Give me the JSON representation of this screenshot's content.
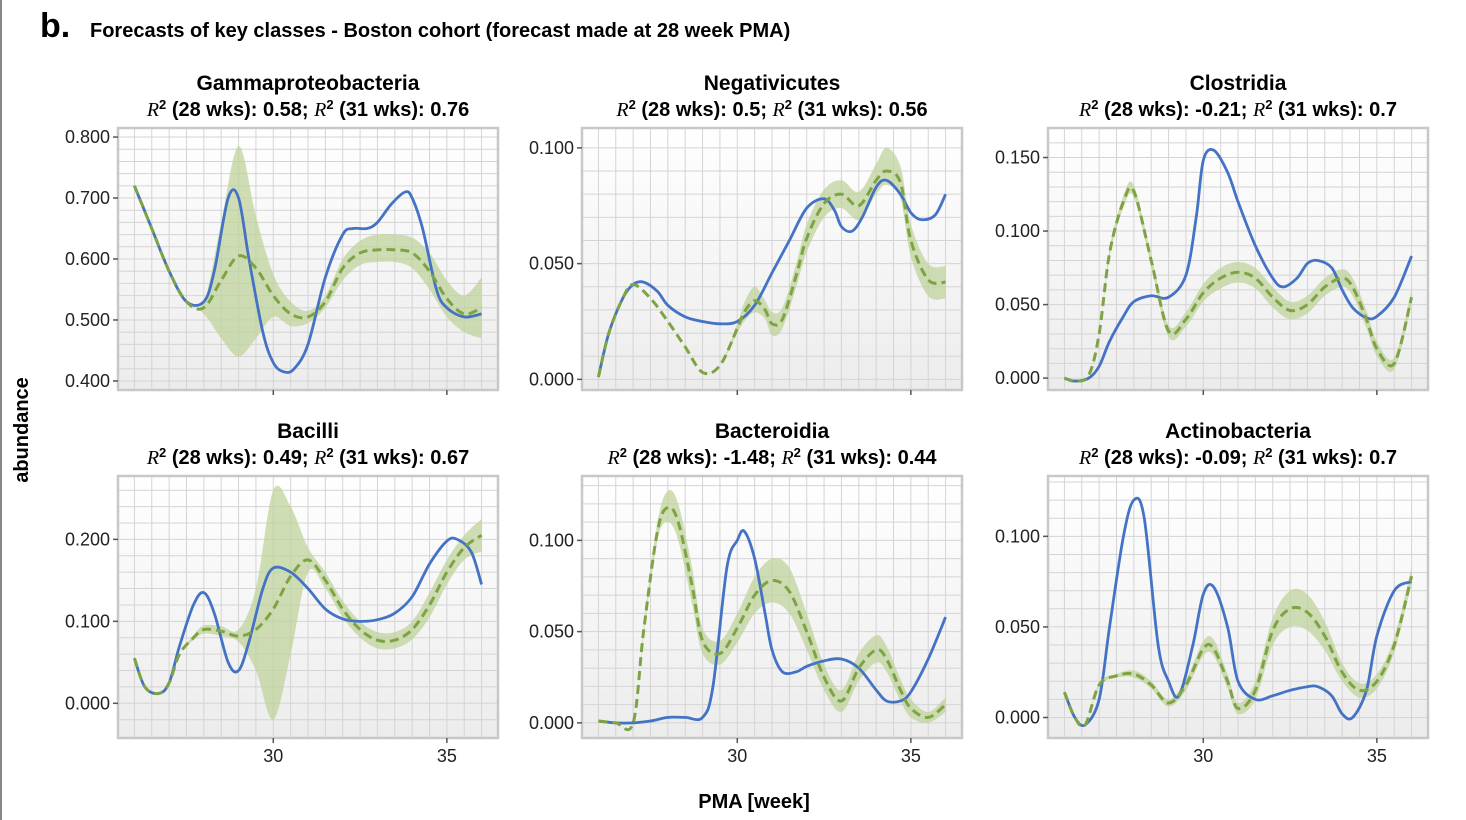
{
  "figure": {
    "panel_letter": "b.",
    "title": "Forecasts of key classes - Boston cohort (forecast made at 28 week PMA)",
    "xlabel": "PMA [week]",
    "ylabel": "abundance"
  },
  "colors": {
    "observed": "#4472c4",
    "forecast": "#7ea343",
    "band": "#bfd39b",
    "grid": "#d4d4d4",
    "frame": "#c8c8c8"
  },
  "chart_data": [
    {
      "type": "line",
      "title": "Gammaproteobacteria",
      "r2_28": "0.58",
      "r2_31": "0.76",
      "xlim": [
        25.7,
        36.3
      ],
      "ylim": [
        0.395,
        0.805
      ],
      "yticks": [
        "0.400",
        "0.500",
        "0.600",
        "0.700",
        "0.800"
      ],
      "ytick_values": [
        0.4,
        0.5,
        0.6,
        0.7,
        0.8
      ],
      "xticks": [
        "30",
        "35"
      ],
      "xtick_values": [
        30,
        35
      ],
      "observed": {
        "x": [
          26,
          26.5,
          27,
          27.5,
          28,
          28.3,
          28.7,
          29,
          29.3,
          29.7,
          30,
          30.3,
          30.6,
          31,
          31.5,
          32,
          32.3,
          32.7,
          33,
          33.4,
          33.8,
          34,
          34.3,
          34.7,
          35,
          35.5,
          36
        ],
        "y": [
          0.72,
          0.65,
          0.58,
          0.53,
          0.53,
          0.58,
          0.7,
          0.7,
          0.6,
          0.48,
          0.43,
          0.415,
          0.42,
          0.46,
          0.57,
          0.64,
          0.65,
          0.65,
          0.66,
          0.69,
          0.71,
          0.7,
          0.65,
          0.55,
          0.52,
          0.505,
          0.51
        ]
      },
      "forecast": {
        "x": [
          26,
          26.5,
          27,
          27.5,
          28,
          28.5,
          29,
          29.5,
          30,
          30.5,
          31,
          31.5,
          32,
          32.5,
          33,
          33.5,
          34,
          34.5,
          35,
          35.5,
          36
        ],
        "y": [
          0.72,
          0.65,
          0.58,
          0.53,
          0.52,
          0.565,
          0.605,
          0.585,
          0.54,
          0.51,
          0.505,
          0.53,
          0.585,
          0.61,
          0.615,
          0.615,
          0.61,
          0.58,
          0.535,
          0.51,
          0.52
        ],
        "lower": [
          0.72,
          0.65,
          0.58,
          0.53,
          0.51,
          0.47,
          0.44,
          0.47,
          0.505,
          0.49,
          0.495,
          0.52,
          0.565,
          0.59,
          0.595,
          0.595,
          0.585,
          0.55,
          0.505,
          0.48,
          0.47
        ],
        "upper": [
          0.72,
          0.65,
          0.58,
          0.53,
          0.53,
          0.66,
          0.785,
          0.67,
          0.575,
          0.53,
          0.515,
          0.54,
          0.6,
          0.63,
          0.64,
          0.64,
          0.635,
          0.61,
          0.565,
          0.54,
          0.57
        ]
      }
    },
    {
      "type": "line",
      "title": "Negativicutes",
      "r2_28": "0.5",
      "r2_31": "0.56",
      "xlim": [
        25.7,
        36.3
      ],
      "ylim": [
        -0.002,
        0.106
      ],
      "yticks": [
        "0.000",
        "0.050",
        "0.100"
      ],
      "ytick_values": [
        0,
        0.05,
        0.1
      ],
      "xticks": [
        "30",
        "35"
      ],
      "xtick_values": [
        30,
        35
      ],
      "observed": {
        "x": [
          26,
          26.3,
          26.7,
          27,
          27.3,
          27.7,
          28,
          28.5,
          29,
          29.5,
          30,
          30.5,
          31,
          31.5,
          32,
          32.5,
          32.8,
          33,
          33.3,
          33.6,
          34,
          34.3,
          34.7,
          35,
          35.3,
          35.7,
          36
        ],
        "y": [
          0.001,
          0.02,
          0.035,
          0.041,
          0.042,
          0.038,
          0.032,
          0.027,
          0.025,
          0.024,
          0.025,
          0.032,
          0.046,
          0.06,
          0.074,
          0.078,
          0.073,
          0.066,
          0.064,
          0.07,
          0.083,
          0.086,
          0.08,
          0.072,
          0.069,
          0.071,
          0.08
        ]
      },
      "forecast": {
        "x": [
          26,
          26.3,
          26.7,
          27,
          27.5,
          28,
          28.5,
          29,
          29.5,
          30,
          30.2,
          30.5,
          30.8,
          31,
          31.3,
          31.7,
          32,
          32.5,
          33,
          33.5,
          34,
          34.3,
          34.7,
          35,
          35.5,
          36
        ],
        "y": [
          0.001,
          0.02,
          0.035,
          0.041,
          0.035,
          0.025,
          0.014,
          0.003,
          0.006,
          0.022,
          0.029,
          0.034,
          0.03,
          0.024,
          0.026,
          0.045,
          0.061,
          0.076,
          0.08,
          0.075,
          0.086,
          0.09,
          0.085,
          0.06,
          0.043,
          0.042
        ],
        "lower": [
          0.001,
          0.02,
          0.035,
          0.041,
          0.035,
          0.025,
          0.014,
          0.003,
          0.006,
          0.02,
          0.025,
          0.029,
          0.026,
          0.019,
          0.022,
          0.04,
          0.055,
          0.07,
          0.074,
          0.069,
          0.08,
          0.084,
          0.078,
          0.053,
          0.036,
          0.035
        ],
        "upper": [
          0.001,
          0.02,
          0.035,
          0.041,
          0.035,
          0.025,
          0.014,
          0.003,
          0.006,
          0.024,
          0.033,
          0.04,
          0.034,
          0.029,
          0.031,
          0.05,
          0.067,
          0.082,
          0.086,
          0.081,
          0.093,
          0.1,
          0.092,
          0.067,
          0.05,
          0.049
        ]
      }
    },
    {
      "type": "line",
      "title": "Clostridia",
      "r2_28": "-0.21",
      "r2_31": "0.7",
      "xlim": [
        25.7,
        36.3
      ],
      "ylim": [
        -0.004,
        0.166
      ],
      "yticks": [
        "0.000",
        "0.050",
        "0.100",
        "0.150"
      ],
      "ytick_values": [
        0,
        0.05,
        0.1,
        0.15
      ],
      "xticks": [
        "30",
        "35"
      ],
      "xtick_values": [
        30,
        35
      ],
      "observed": {
        "x": [
          26,
          26.3,
          26.7,
          27,
          27.3,
          27.7,
          28,
          28.5,
          29,
          29.5,
          29.8,
          30,
          30.3,
          30.7,
          31,
          31.5,
          32,
          32.3,
          32.7,
          33,
          33.3,
          33.7,
          34,
          34.3,
          34.7,
          35,
          35.5,
          36
        ],
        "y": [
          0,
          -0.002,
          0.0,
          0.008,
          0.025,
          0.042,
          0.052,
          0.056,
          0.055,
          0.07,
          0.11,
          0.148,
          0.155,
          0.14,
          0.12,
          0.09,
          0.068,
          0.062,
          0.068,
          0.078,
          0.08,
          0.075,
          0.06,
          0.048,
          0.041,
          0.042,
          0.055,
          0.083
        ]
      },
      "forecast": {
        "x": [
          26,
          26.3,
          26.7,
          27,
          27.3,
          27.7,
          28,
          28.5,
          29,
          29.5,
          30,
          30.5,
          31,
          31.5,
          32,
          32.5,
          33,
          33.5,
          34,
          34.3,
          34.7,
          35,
          35.5,
          36
        ],
        "y": [
          0,
          -0.002,
          0.002,
          0.03,
          0.085,
          0.12,
          0.127,
          0.08,
          0.032,
          0.04,
          0.058,
          0.068,
          0.072,
          0.068,
          0.055,
          0.046,
          0.05,
          0.062,
          0.068,
          0.062,
          0.04,
          0.02,
          0.01,
          0.055
        ],
        "lower": [
          0,
          -0.002,
          0.002,
          0.03,
          0.082,
          0.116,
          0.123,
          0.076,
          0.028,
          0.035,
          0.052,
          0.061,
          0.065,
          0.061,
          0.048,
          0.04,
          0.044,
          0.056,
          0.062,
          0.056,
          0.034,
          0.015,
          0.006,
          0.05
        ],
        "upper": [
          0,
          -0.002,
          0.002,
          0.03,
          0.088,
          0.124,
          0.131,
          0.084,
          0.036,
          0.045,
          0.064,
          0.075,
          0.079,
          0.075,
          0.062,
          0.052,
          0.056,
          0.068,
          0.074,
          0.068,
          0.046,
          0.025,
          0.014,
          0.06
        ]
      }
    },
    {
      "type": "line",
      "title": "Bacilli",
      "r2_28": "0.49",
      "r2_31": "0.67",
      "xlim": [
        25.7,
        36.3
      ],
      "ylim": [
        -0.035,
        0.27
      ],
      "yticks": [
        "0.000",
        "0.100",
        "0.200"
      ],
      "ytick_values": [
        0,
        0.1,
        0.2
      ],
      "xticks": [
        "30",
        "35"
      ],
      "xtick_values": [
        30,
        35
      ],
      "observed": {
        "x": [
          26,
          26.3,
          26.7,
          27,
          27.3,
          27.7,
          28,
          28.3,
          28.7,
          29,
          29.3,
          29.7,
          30,
          30.5,
          31,
          31.5,
          32,
          32.5,
          33,
          33.5,
          34,
          34.5,
          35,
          35.3,
          35.7,
          36
        ],
        "y": [
          0.055,
          0.02,
          0.012,
          0.025,
          0.07,
          0.12,
          0.135,
          0.11,
          0.05,
          0.04,
          0.075,
          0.14,
          0.165,
          0.16,
          0.14,
          0.115,
          0.103,
          0.1,
          0.102,
          0.11,
          0.13,
          0.17,
          0.198,
          0.2,
          0.185,
          0.145
        ]
      },
      "forecast": {
        "x": [
          26,
          26.3,
          26.7,
          27,
          27.3,
          27.7,
          28,
          28.5,
          29,
          29.5,
          30,
          30.5,
          31,
          31.5,
          32,
          32.5,
          33,
          33.5,
          34,
          34.5,
          35,
          35.5,
          36
        ],
        "y": [
          0.055,
          0.02,
          0.012,
          0.025,
          0.06,
          0.08,
          0.09,
          0.088,
          0.082,
          0.09,
          0.115,
          0.155,
          0.175,
          0.15,
          0.115,
          0.09,
          0.077,
          0.077,
          0.09,
          0.12,
          0.16,
          0.19,
          0.205
        ],
        "lower": [
          0.055,
          0.02,
          0.012,
          0.025,
          0.06,
          0.077,
          0.085,
          0.082,
          0.075,
          0.04,
          -0.02,
          0.06,
          0.16,
          0.14,
          0.105,
          0.08,
          0.067,
          0.067,
          0.078,
          0.105,
          0.145,
          0.175,
          0.185
        ],
        "upper": [
          0.055,
          0.02,
          0.012,
          0.025,
          0.06,
          0.083,
          0.095,
          0.094,
          0.09,
          0.14,
          0.26,
          0.24,
          0.19,
          0.16,
          0.125,
          0.1,
          0.087,
          0.087,
          0.1,
          0.135,
          0.175,
          0.205,
          0.225
        ]
      }
    },
    {
      "type": "line",
      "title": "Bacteroidia",
      "r2_28": "-1.48",
      "r2_31": "0.44",
      "xlim": [
        25.7,
        36.3
      ],
      "ylim": [
        -0.005,
        0.132
      ],
      "yticks": [
        "0.000",
        "0.050",
        "0.100"
      ],
      "ytick_values": [
        0,
        0.05,
        0.1
      ],
      "xticks": [
        "30",
        "35"
      ],
      "xtick_values": [
        30,
        35
      ],
      "observed": {
        "x": [
          26,
          26.5,
          27,
          27.5,
          28,
          28.5,
          29,
          29.3,
          29.7,
          30,
          30.2,
          30.5,
          30.8,
          31,
          31.3,
          31.7,
          32,
          32.5,
          33,
          33.5,
          34,
          34.3,
          34.7,
          35,
          35.5,
          36
        ],
        "y": [
          0.001,
          0.0,
          0.0,
          0.001,
          0.003,
          0.003,
          0.003,
          0.02,
          0.085,
          0.1,
          0.105,
          0.09,
          0.06,
          0.04,
          0.028,
          0.028,
          0.031,
          0.034,
          0.035,
          0.03,
          0.018,
          0.012,
          0.012,
          0.017,
          0.035,
          0.058
        ]
      },
      "forecast": {
        "x": [
          26,
          26.5,
          27,
          27.3,
          27.7,
          28,
          28.3,
          28.7,
          29,
          29.5,
          30,
          30.5,
          31,
          31.5,
          32,
          32.5,
          33,
          33.5,
          34,
          34.3,
          34.7,
          35,
          35.5,
          36
        ],
        "y": [
          0.001,
          0.0,
          0.0,
          0.05,
          0.105,
          0.118,
          0.11,
          0.075,
          0.045,
          0.038,
          0.052,
          0.07,
          0.078,
          0.072,
          0.05,
          0.025,
          0.012,
          0.03,
          0.04,
          0.035,
          0.018,
          0.008,
          0.003,
          0.01
        ],
        "lower": [
          0.001,
          0.0,
          0.0,
          0.048,
          0.1,
          0.11,
          0.1,
          0.065,
          0.038,
          0.032,
          0.044,
          0.06,
          0.066,
          0.06,
          0.04,
          0.018,
          0.006,
          0.023,
          0.033,
          0.028,
          0.012,
          0.003,
          0.0,
          0.006
        ],
        "upper": [
          0.001,
          0.0,
          0.0,
          0.052,
          0.11,
          0.127,
          0.12,
          0.085,
          0.052,
          0.045,
          0.06,
          0.08,
          0.09,
          0.085,
          0.06,
          0.032,
          0.018,
          0.038,
          0.048,
          0.042,
          0.024,
          0.013,
          0.006,
          0.014
        ]
      }
    },
    {
      "type": "line",
      "title": "Actinobacteria",
      "r2_28": "-0.09",
      "r2_31": "0.7",
      "xlim": [
        25.7,
        36.3
      ],
      "ylim": [
        -0.008,
        0.13
      ],
      "yticks": [
        "0.000",
        "0.050",
        "0.100"
      ],
      "ytick_values": [
        0,
        0.05,
        0.1
      ],
      "xticks": [
        "30",
        "35"
      ],
      "xtick_values": [
        30,
        35
      ],
      "observed": {
        "x": [
          26,
          26.3,
          26.6,
          27,
          27.3,
          27.7,
          28,
          28.3,
          28.7,
          29,
          29.3,
          29.7,
          30,
          30.3,
          30.7,
          31,
          31.5,
          32,
          32.5,
          33,
          33.3,
          33.7,
          34,
          34.3,
          34.7,
          35,
          35.5,
          36
        ],
        "y": [
          0.014,
          0.0,
          -0.004,
          0.01,
          0.05,
          0.1,
          0.12,
          0.11,
          0.04,
          0.02,
          0.012,
          0.04,
          0.068,
          0.072,
          0.05,
          0.02,
          0.01,
          0.012,
          0.015,
          0.017,
          0.017,
          0.012,
          0.002,
          0.0,
          0.015,
          0.045,
          0.07,
          0.075
        ]
      },
      "forecast": {
        "x": [
          26,
          26.3,
          26.6,
          27,
          27.5,
          28,
          28.5,
          29,
          29.5,
          30,
          30.3,
          30.7,
          31,
          31.5,
          32,
          32.5,
          33,
          33.5,
          34,
          34.5,
          35,
          35.5,
          36
        ],
        "y": [
          0.014,
          0.0,
          -0.004,
          0.018,
          0.023,
          0.024,
          0.018,
          0.008,
          0.018,
          0.038,
          0.038,
          0.02,
          0.005,
          0.015,
          0.048,
          0.06,
          0.058,
          0.045,
          0.025,
          0.015,
          0.02,
          0.04,
          0.078
        ],
        "lower": [
          0.014,
          0.0,
          -0.004,
          0.017,
          0.022,
          0.022,
          0.016,
          0.006,
          0.015,
          0.034,
          0.034,
          0.016,
          0.002,
          0.01,
          0.04,
          0.05,
          0.048,
          0.037,
          0.02,
          0.011,
          0.016,
          0.036,
          0.074
        ],
        "upper": [
          0.014,
          0.0,
          -0.004,
          0.019,
          0.024,
          0.026,
          0.02,
          0.01,
          0.021,
          0.042,
          0.043,
          0.024,
          0.008,
          0.02,
          0.055,
          0.07,
          0.068,
          0.053,
          0.03,
          0.019,
          0.024,
          0.044,
          0.083
        ]
      }
    }
  ]
}
